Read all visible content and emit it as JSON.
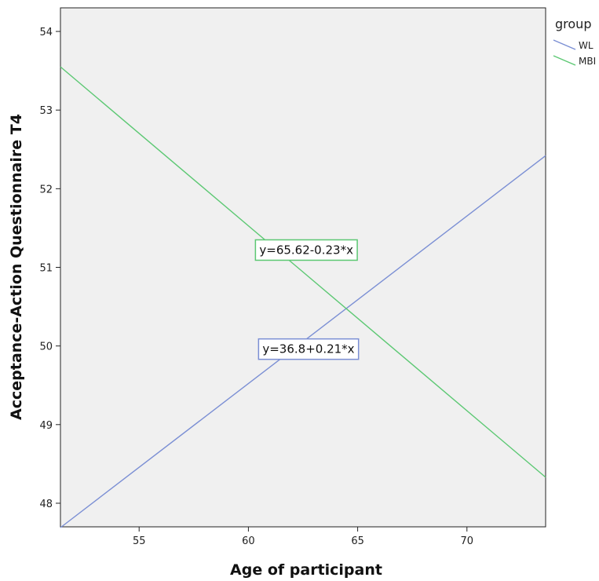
{
  "chart_data": {
    "type": "line",
    "xlabel": "Age of participant",
    "ylabel": "Acceptance-Action Questionnaire T4",
    "xlim": [
      51.4,
      73.6
    ],
    "ylim": [
      47.7,
      54.3
    ],
    "x_ticks": [
      "55",
      "60",
      "65",
      "70"
    ],
    "y_ticks": [
      "48",
      "49",
      "50",
      "51",
      "52",
      "53",
      "54"
    ],
    "x_tick_values": [
      55,
      60,
      65,
      70
    ],
    "y_tick_values": [
      48,
      49,
      50,
      51,
      52,
      53,
      54
    ],
    "grid": false,
    "background": "#f0f0f0",
    "legend": {
      "title": "group",
      "placement": "right"
    },
    "series": [
      {
        "name": "WL",
        "color": "#7b8fd4",
        "x": [
          51.4,
          73.6
        ],
        "y": [
          47.69,
          52.42
        ],
        "equation": "y=36.8+0.21*x",
        "equation_anchor": [
          62.75,
          49.96
        ]
      },
      {
        "name": "MBI",
        "color": "#5cc873",
        "x": [
          51.4,
          73.6
        ],
        "y": [
          53.55,
          48.33
        ],
        "equation": "y=65.62-0.23*x",
        "equation_anchor": [
          62.65,
          51.22
        ]
      }
    ]
  }
}
